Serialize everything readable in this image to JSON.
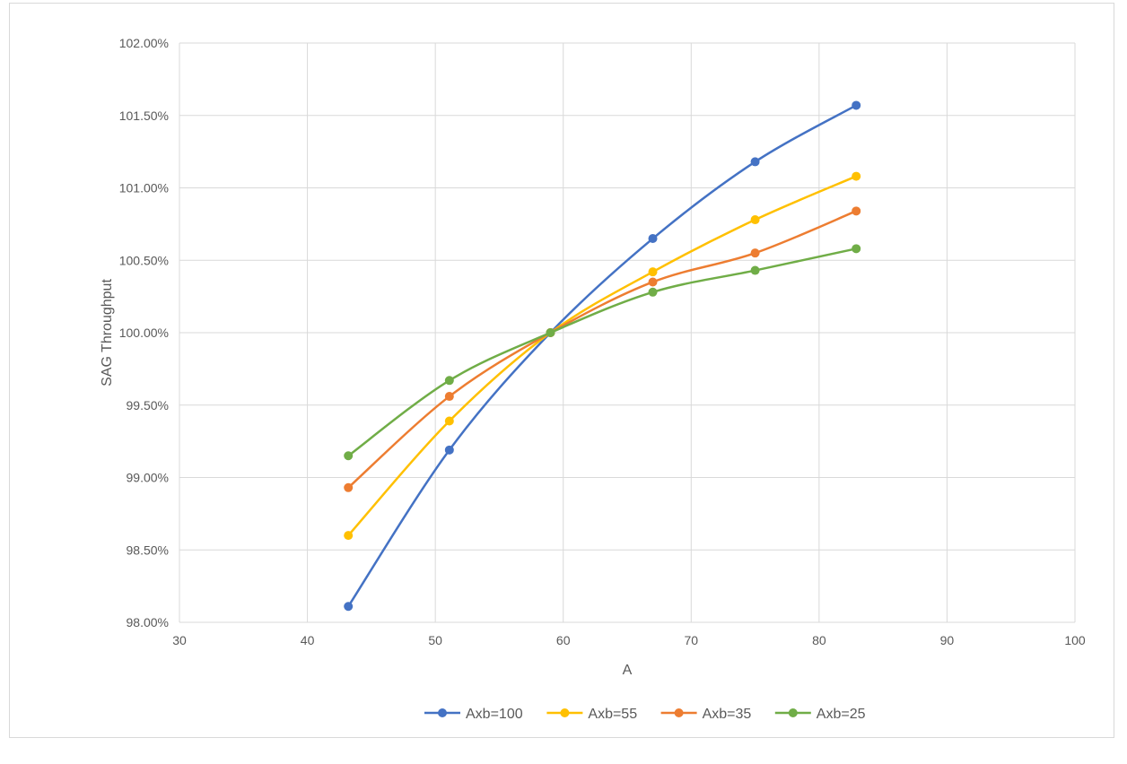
{
  "chart_data": {
    "type": "line",
    "title": "",
    "xlabel": "A",
    "ylabel": "SAG Throughput",
    "xlim": [
      30,
      100
    ],
    "ylim": [
      98.0,
      102.0
    ],
    "xticks": [
      30,
      40,
      50,
      60,
      70,
      80,
      90,
      100
    ],
    "yticks": [
      98.0,
      98.5,
      99.0,
      99.5,
      100.0,
      100.5,
      101.0,
      101.5,
      102.0
    ],
    "ytick_labels": [
      "98.00%",
      "98.50%",
      "99.00%",
      "99.50%",
      "100.00%",
      "100.50%",
      "101.00%",
      "101.50%",
      "102.00%"
    ],
    "grid": true,
    "legend_position": "bottom",
    "x": [
      43.2,
      51.1,
      59.0,
      67.0,
      75.0,
      82.9
    ],
    "series": [
      {
        "name": "Axb=100",
        "color": "#4472c4",
        "values": [
          98.11,
          99.19,
          100.0,
          100.65,
          101.18,
          101.57
        ]
      },
      {
        "name": "Axb=55",
        "color": "#ffc000",
        "values": [
          98.6,
          99.39,
          100.0,
          100.42,
          100.78,
          101.08
        ]
      },
      {
        "name": "Axb=35",
        "color": "#ed7d31",
        "values": [
          98.93,
          99.56,
          100.0,
          100.35,
          100.55,
          100.84
        ]
      },
      {
        "name": "Axb=25",
        "color": "#70ad47",
        "values": [
          99.15,
          99.67,
          100.0,
          100.28,
          100.43,
          100.58
        ]
      }
    ]
  }
}
